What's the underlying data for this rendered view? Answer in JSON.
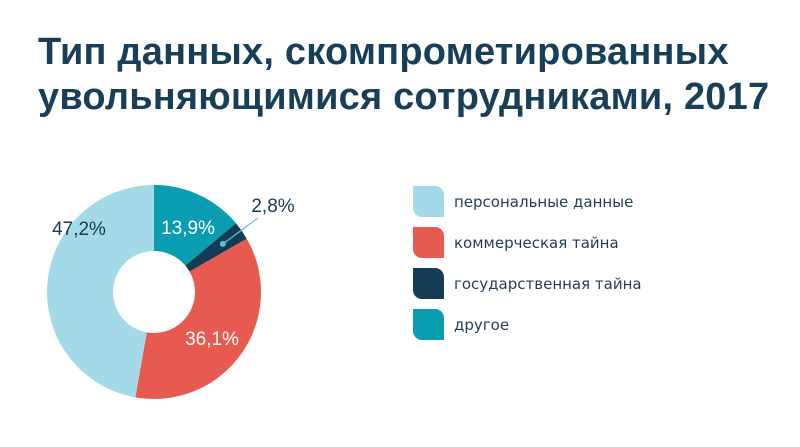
{
  "chart_data": {
    "type": "pie",
    "title": [
      "Тип данных, скомпрометированных",
      "увольняющимися сотрудниками, 2017"
    ],
    "slices": [
      {
        "label": "другое",
        "value": 13.9,
        "value_label": "13,9%",
        "color": "#0a9cb0",
        "label_color": "#ffffff"
      },
      {
        "label": "государственная тайна",
        "value": 2.8,
        "value_label": "2,8%",
        "color": "#143d55",
        "label_color": "#143d55"
      },
      {
        "label": "коммерческая тайна",
        "value": 36.1,
        "value_label": "36,1%",
        "color": "#e65a50",
        "label_color": "#ffffff"
      },
      {
        "label": "персональные данные",
        "value": 47.2,
        "value_label": "47,2%",
        "color": "#a4d9e7",
        "label_color": "#143d55"
      }
    ],
    "legend": [
      {
        "label": "персональные данные",
        "color": "#a4d9e7"
      },
      {
        "label": "коммерческая тайна",
        "color": "#e65a50"
      },
      {
        "label": "государственная тайна",
        "color": "#143d55"
      },
      {
        "label": "другое",
        "color": "#0a9cb0"
      }
    ],
    "legend_position": "right",
    "donut": true
  }
}
